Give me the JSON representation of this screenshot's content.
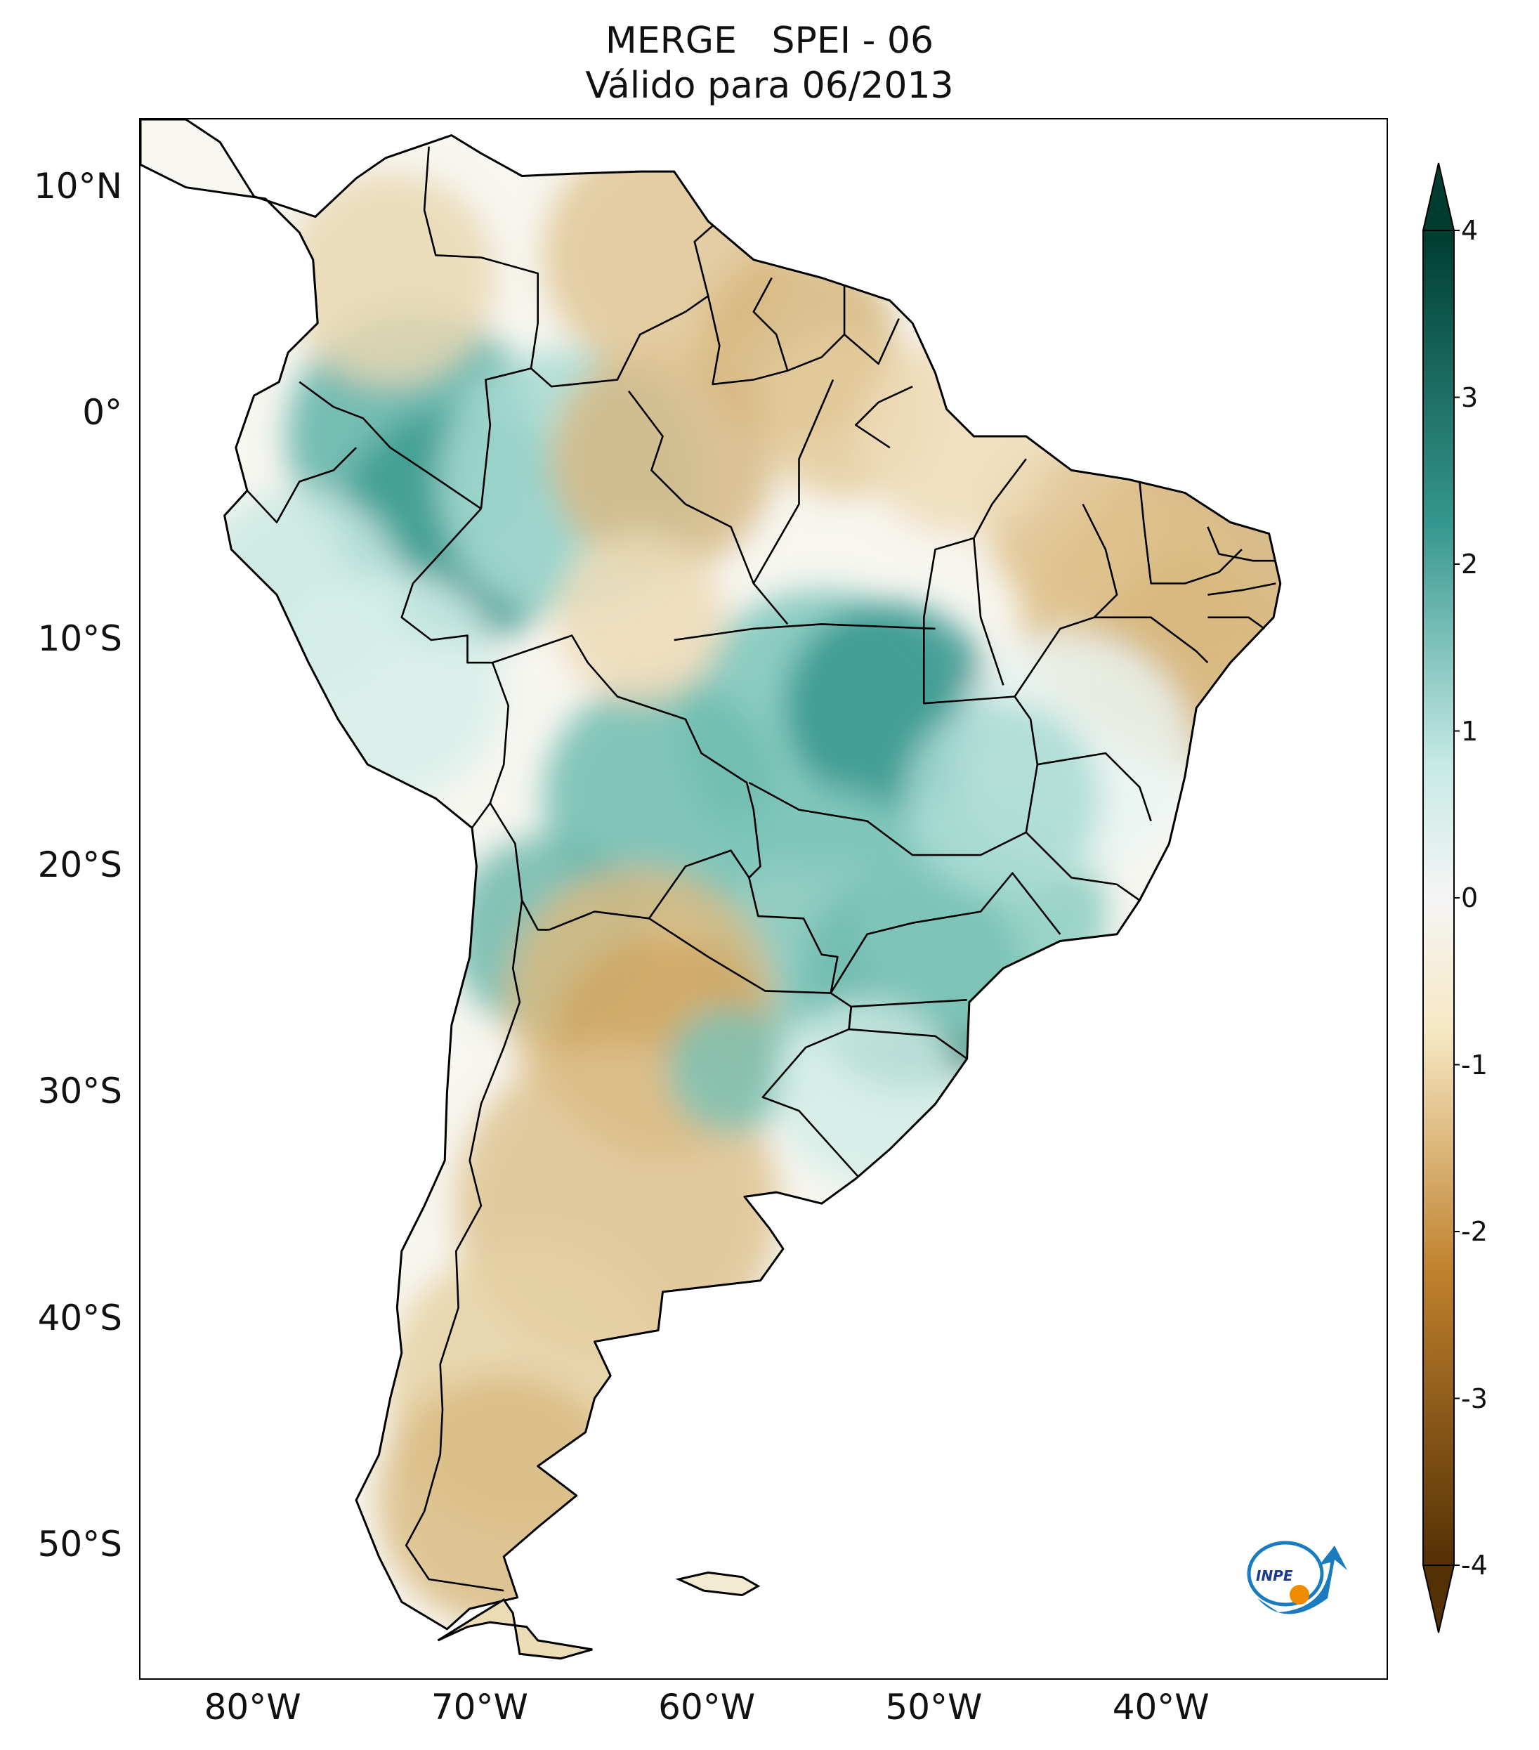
{
  "title": {
    "line1": "MERGE   SPEI - 06",
    "line2": "Válido para 06/2013"
  },
  "map": {
    "lat_ticks": [
      "10°N",
      "0°",
      "10°S",
      "20°S",
      "30°S",
      "40°S",
      "50°S"
    ],
    "lat_values": [
      10,
      0,
      -10,
      -20,
      -30,
      -40,
      -50
    ],
    "lon_ticks": [
      "80°W",
      "70°W",
      "60°W",
      "50°W",
      "40°W"
    ],
    "lon_values": [
      -80,
      -70,
      -60,
      -50,
      -40
    ],
    "lon_range": [
      -85,
      -30
    ],
    "lat_range": [
      -56,
      13
    ]
  },
  "colorbar": {
    "labels": [
      "4",
      "3",
      "2",
      "1",
      "0",
      "-1",
      "-2",
      "-3",
      "-4"
    ],
    "values": [
      4,
      3,
      2,
      1,
      0,
      -1,
      -2,
      -3,
      -4
    ],
    "range": [
      -4,
      4
    ],
    "extend": "both",
    "colormap": "BrBG",
    "colors": {
      "dry_dark": "#543005",
      "dry_mid": "#bf812d",
      "dry_light": "#f6e8c3",
      "neutral": "#f5f5f5",
      "wet_light": "#c7eae5",
      "wet_mid": "#35978f",
      "wet_dark": "#003c30"
    }
  },
  "logo": {
    "text": "INPE",
    "colors": {
      "arrow": "#1a7bbf",
      "dot": "#f08c00"
    }
  }
}
